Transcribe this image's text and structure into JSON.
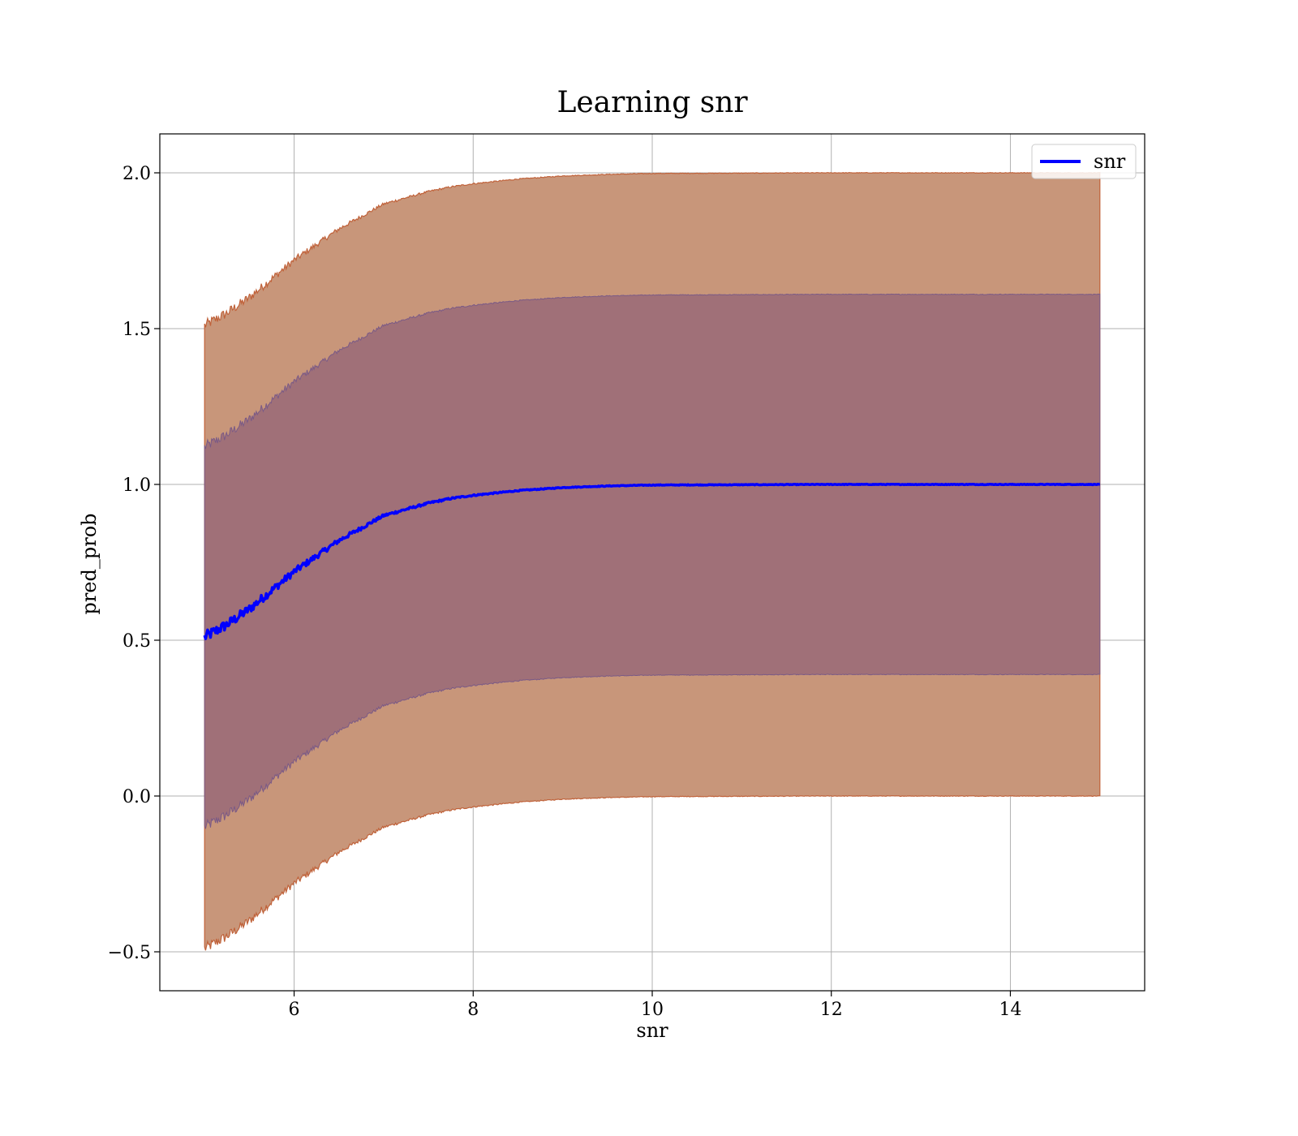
{
  "chart_data": {
    "type": "line",
    "title": "Learning snr",
    "xlabel": "snr",
    "ylabel": "pred_prob",
    "xlim": [
      4.5,
      15.5
    ],
    "ylim": [
      -0.625,
      2.125
    ],
    "xticks": [
      6,
      8,
      10,
      12,
      14
    ],
    "yticks": [
      -0.5,
      0.0,
      0.5,
      1.0,
      1.5,
      2.0
    ],
    "xtick_labels": [
      "6",
      "8",
      "10",
      "12",
      "14"
    ],
    "ytick_labels": [
      "−0.5",
      "0.0",
      "0.5",
      "1.0",
      "1.5",
      "2.0"
    ],
    "grid": true,
    "legend": {
      "position": "top-right",
      "entries": [
        "snr"
      ]
    },
    "colors": {
      "line": "#0000ff",
      "outer_band": "#c8967a",
      "outer_band_edge": "#c0623a",
      "inner_band": "#a07078",
      "inner_band_edge": "#7a5a86",
      "grid": "#b0b0b0"
    },
    "series": [
      {
        "name": "snr",
        "x": [
          5.0,
          5.25,
          5.5,
          5.75,
          6.0,
          6.25,
          6.5,
          6.75,
          7.0,
          7.25,
          7.5,
          7.75,
          8.0,
          8.5,
          9.0,
          9.5,
          10.0,
          11.0,
          12.0,
          13.0,
          14.0,
          15.0
        ],
        "y": [
          0.51,
          0.55,
          0.6,
          0.66,
          0.72,
          0.77,
          0.82,
          0.86,
          0.9,
          0.92,
          0.94,
          0.955,
          0.965,
          0.98,
          0.99,
          0.995,
          0.998,
          0.999,
          1.0,
          1.0,
          1.0,
          1.0
        ],
        "band_inner_halfwidth": 0.61,
        "band_outer_halfwidth": 1.0
      }
    ]
  }
}
